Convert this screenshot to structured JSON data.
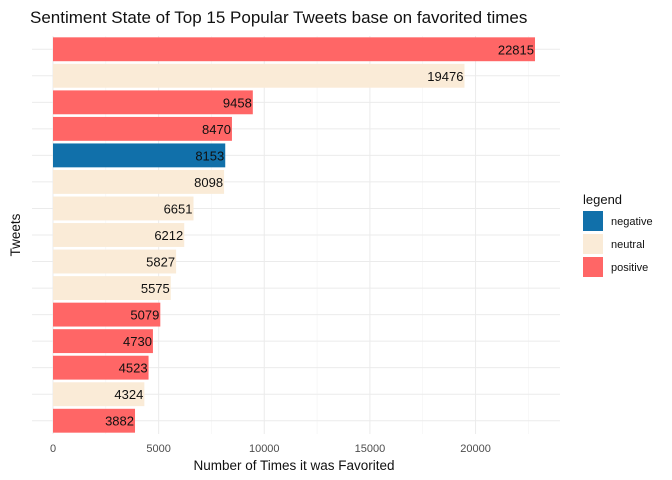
{
  "chart_data": {
    "type": "bar",
    "orientation": "horizontal",
    "title": "Sentiment State of Top 15 Popular Tweets base on favorited times",
    "xlabel": "Number of Times it was Favorited",
    "ylabel": "Tweets",
    "xlim": [
      0,
      23500
    ],
    "x_ticks": [
      0,
      5000,
      10000,
      15000,
      20000
    ],
    "x_tick_labels": [
      "0",
      "5000",
      "10000",
      "15000",
      "20000"
    ],
    "y_tick_labels_visible": false,
    "grid": true,
    "legend": {
      "title": "legend",
      "placement": "right",
      "entries": [
        {
          "label": "negative",
          "color": "#1170AA"
        },
        {
          "label": "neutral",
          "color": "#FAEBD7"
        },
        {
          "label": "positive",
          "color": "#FF6666"
        }
      ]
    },
    "bars": [
      {
        "value": 22815,
        "sentiment": "positive",
        "label": "22815"
      },
      {
        "value": 19476,
        "sentiment": "neutral",
        "label": "19476"
      },
      {
        "value": 9458,
        "sentiment": "positive",
        "label": "9458"
      },
      {
        "value": 8470,
        "sentiment": "positive",
        "label": "8470"
      },
      {
        "value": 8153,
        "sentiment": "negative",
        "label": "8153"
      },
      {
        "value": 8098,
        "sentiment": "neutral",
        "label": "8098"
      },
      {
        "value": 6651,
        "sentiment": "neutral",
        "label": "6651"
      },
      {
        "value": 6212,
        "sentiment": "neutral",
        "label": "6212"
      },
      {
        "value": 5827,
        "sentiment": "neutral",
        "label": "5827"
      },
      {
        "value": 5575,
        "sentiment": "neutral",
        "label": "5575"
      },
      {
        "value": 5079,
        "sentiment": "positive",
        "label": "5079"
      },
      {
        "value": 4730,
        "sentiment": "positive",
        "label": "4730"
      },
      {
        "value": 4523,
        "sentiment": "positive",
        "label": "4523"
      },
      {
        "value": 4324,
        "sentiment": "neutral",
        "label": "4324"
      },
      {
        "value": 3882,
        "sentiment": "positive",
        "label": "3882"
      }
    ]
  }
}
